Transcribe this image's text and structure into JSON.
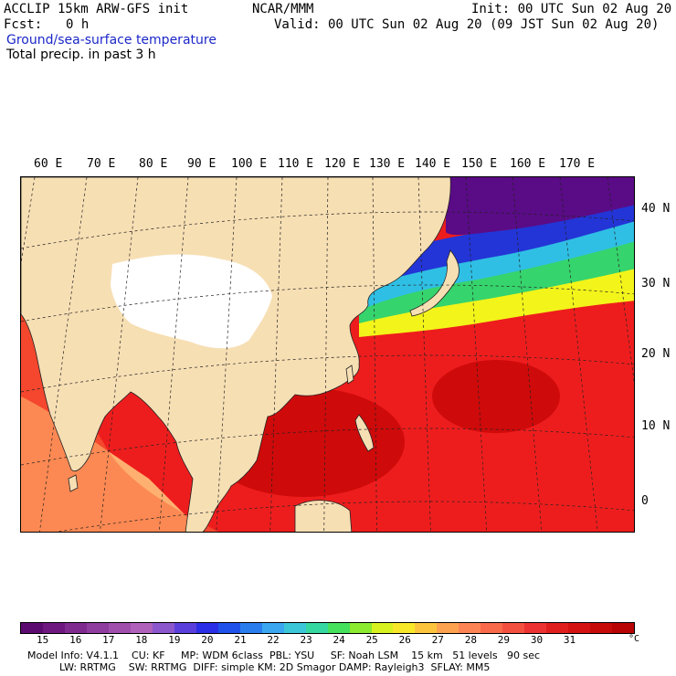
{
  "header": {
    "model_title": "ACCLIP 15km ARW-GFS init",
    "org": "NCAR/MMM",
    "init": "Init: 00 UTC Sun 02 Aug 20",
    "fcst_label": "Fcst:",
    "fcst_value": "0 h",
    "valid": "Valid: 00 UTC Sun 02 Aug 20 (09 JST Sun 02 Aug 20)",
    "field1": "Ground/sea-surface temperature",
    "field2": "Total precip. in past 3 h"
  },
  "map": {
    "lon_labels": [
      "60 E",
      "70 E",
      "80 E",
      "90 E",
      "100 E",
      "110 E",
      "120 E",
      "130 E",
      "140 E",
      "150 E",
      "160 E",
      "170 E"
    ],
    "lat_labels": [
      "40 N",
      "30 N",
      "20 N",
      "10 N",
      "0"
    ],
    "colors": {
      "land": "#f7dfb4",
      "plateau": "#ffffff",
      "ocean_warm": "#ee1d1d",
      "ocean_hot": "#cf0a0a",
      "ocean_mid": "#fa6a3c",
      "ocean_cool": "#ffb070",
      "front_yellow": "#f3f41a",
      "front_green": "#36d46c",
      "front_cyan": "#2fbfe4",
      "front_blue": "#2335d6",
      "cold_purple": "#5a0b86"
    }
  },
  "colorbar": {
    "unit": "°C",
    "tick_labels": [
      "15",
      "16",
      "17",
      "18",
      "19",
      "20",
      "21",
      "22",
      "23",
      "24",
      "25",
      "26",
      "27",
      "28",
      "29",
      "30",
      "31"
    ],
    "colors": [
      "#5b0a70",
      "#6e1781",
      "#7e2a8f",
      "#8f3d9e",
      "#a04fac",
      "#b062ba",
      "#8c57cd",
      "#5a3fdc",
      "#2a2ee6",
      "#1f52ea",
      "#2a7ded",
      "#3aa7f0",
      "#3cc7d8",
      "#35d8a0",
      "#45e05c",
      "#8cea2f",
      "#d8f21f",
      "#f7e82a",
      "#fcc43c",
      "#fda24e",
      "#fd8454",
      "#f96a4a",
      "#f35040",
      "#ec3232",
      "#e01e1e",
      "#d41212",
      "#c60a0a",
      "#b80404"
    ]
  },
  "footer": {
    "line1": "Model Info: V4.1.1    CU: KF     MP: WDM 6class  PBL: YSU     SF: Noah LSM    15 km   51 levels   90 sec",
    "line2": "          LW: RRTMG    SW: RRTMG  DIFF: simple KM: 2D Smagor DAMP: Rayleigh3  SFLAY: MM5"
  }
}
